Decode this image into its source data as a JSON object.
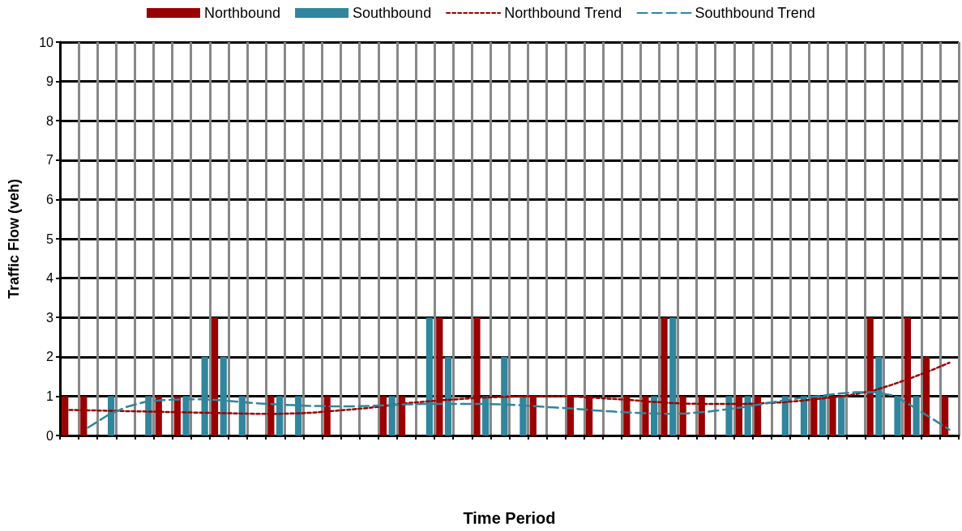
{
  "chart_data": {
    "type": "bar",
    "xlabel": "Time Period",
    "ylabel": "Traffic Flow (veh)",
    "categories": [
      null,
      null,
      null,
      null,
      null,
      null,
      null,
      null,
      null,
      null,
      null,
      null,
      null,
      null,
      null,
      null,
      null,
      null,
      null,
      null,
      null,
      null,
      null,
      null,
      null,
      null,
      null,
      null,
      null,
      null,
      null,
      null,
      null,
      null,
      null,
      null,
      null,
      null,
      null,
      null,
      null,
      null,
      null,
      null,
      null,
      null,
      null,
      null
    ],
    "series": [
      {
        "name": "Northbound",
        "color": "#990000",
        "values": [
          1,
          1,
          0,
          0,
          0,
          1,
          1,
          0,
          3,
          0,
          0,
          1,
          0,
          0,
          1,
          0,
          0,
          1,
          1,
          0,
          3,
          0,
          3,
          0,
          0,
          1,
          0,
          1,
          1,
          0,
          1,
          1,
          3,
          1,
          1,
          0,
          1,
          1,
          0,
          0,
          1,
          1,
          0,
          3,
          0,
          3,
          2,
          1
        ]
      },
      {
        "name": "Southbound",
        "color": "#31859c",
        "values": [
          0,
          0,
          1,
          0,
          1,
          0,
          1,
          2,
          2,
          1,
          0,
          1,
          1,
          0,
          0,
          0,
          0,
          1,
          0,
          3,
          2,
          0,
          1,
          2,
          1,
          0,
          0,
          0,
          0,
          0,
          0,
          1,
          3,
          0,
          0,
          1,
          1,
          0,
          1,
          1,
          1,
          1,
          0,
          2,
          1,
          1,
          0,
          0
        ]
      },
      {
        "name": "Northbound Trend",
        "type": "line",
        "line_style": "dotted",
        "marker": "none",
        "color": "#990000",
        "values": [
          0.65,
          0.64,
          0.63,
          0.62,
          0.61,
          0.6,
          0.59,
          0.58,
          0.57,
          0.56,
          0.55,
          0.55,
          0.56,
          0.58,
          0.62,
          0.66,
          0.7,
          0.76,
          0.82,
          0.86,
          0.9,
          0.93,
          0.96,
          0.98,
          0.99,
          1.0,
          1.0,
          0.99,
          0.96,
          0.93,
          0.9,
          0.86,
          0.83,
          0.81,
          0.8,
          0.8,
          0.8,
          0.82,
          0.84,
          0.88,
          0.93,
          0.98,
          1.05,
          1.15,
          1.3,
          1.47,
          1.65,
          1.85
        ]
      },
      {
        "name": "Southbound Trend",
        "type": "line",
        "line_style": "dashed",
        "marker": "none",
        "color": "#31859c",
        "values": [
          null,
          0.2,
          0.5,
          0.72,
          0.85,
          0.9,
          0.92,
          0.92,
          0.9,
          0.86,
          0.82,
          0.79,
          0.77,
          0.75,
          0.74,
          0.74,
          0.75,
          0.77,
          0.79,
          0.8,
          0.8,
          0.8,
          0.8,
          0.79,
          0.77,
          0.74,
          0.71,
          0.68,
          0.64,
          0.61,
          0.58,
          0.56,
          0.55,
          0.56,
          0.6,
          0.66,
          0.72,
          0.8,
          0.88,
          0.95,
          1.0,
          1.06,
          1.1,
          1.1,
          1.02,
          0.75,
          0.45,
          0.15
        ]
      }
    ],
    "ylim": [
      0,
      10
    ],
    "yticks": [
      0,
      1,
      2,
      3,
      4,
      5,
      6,
      7,
      8,
      9,
      10
    ],
    "grid": true,
    "legend": "top"
  }
}
